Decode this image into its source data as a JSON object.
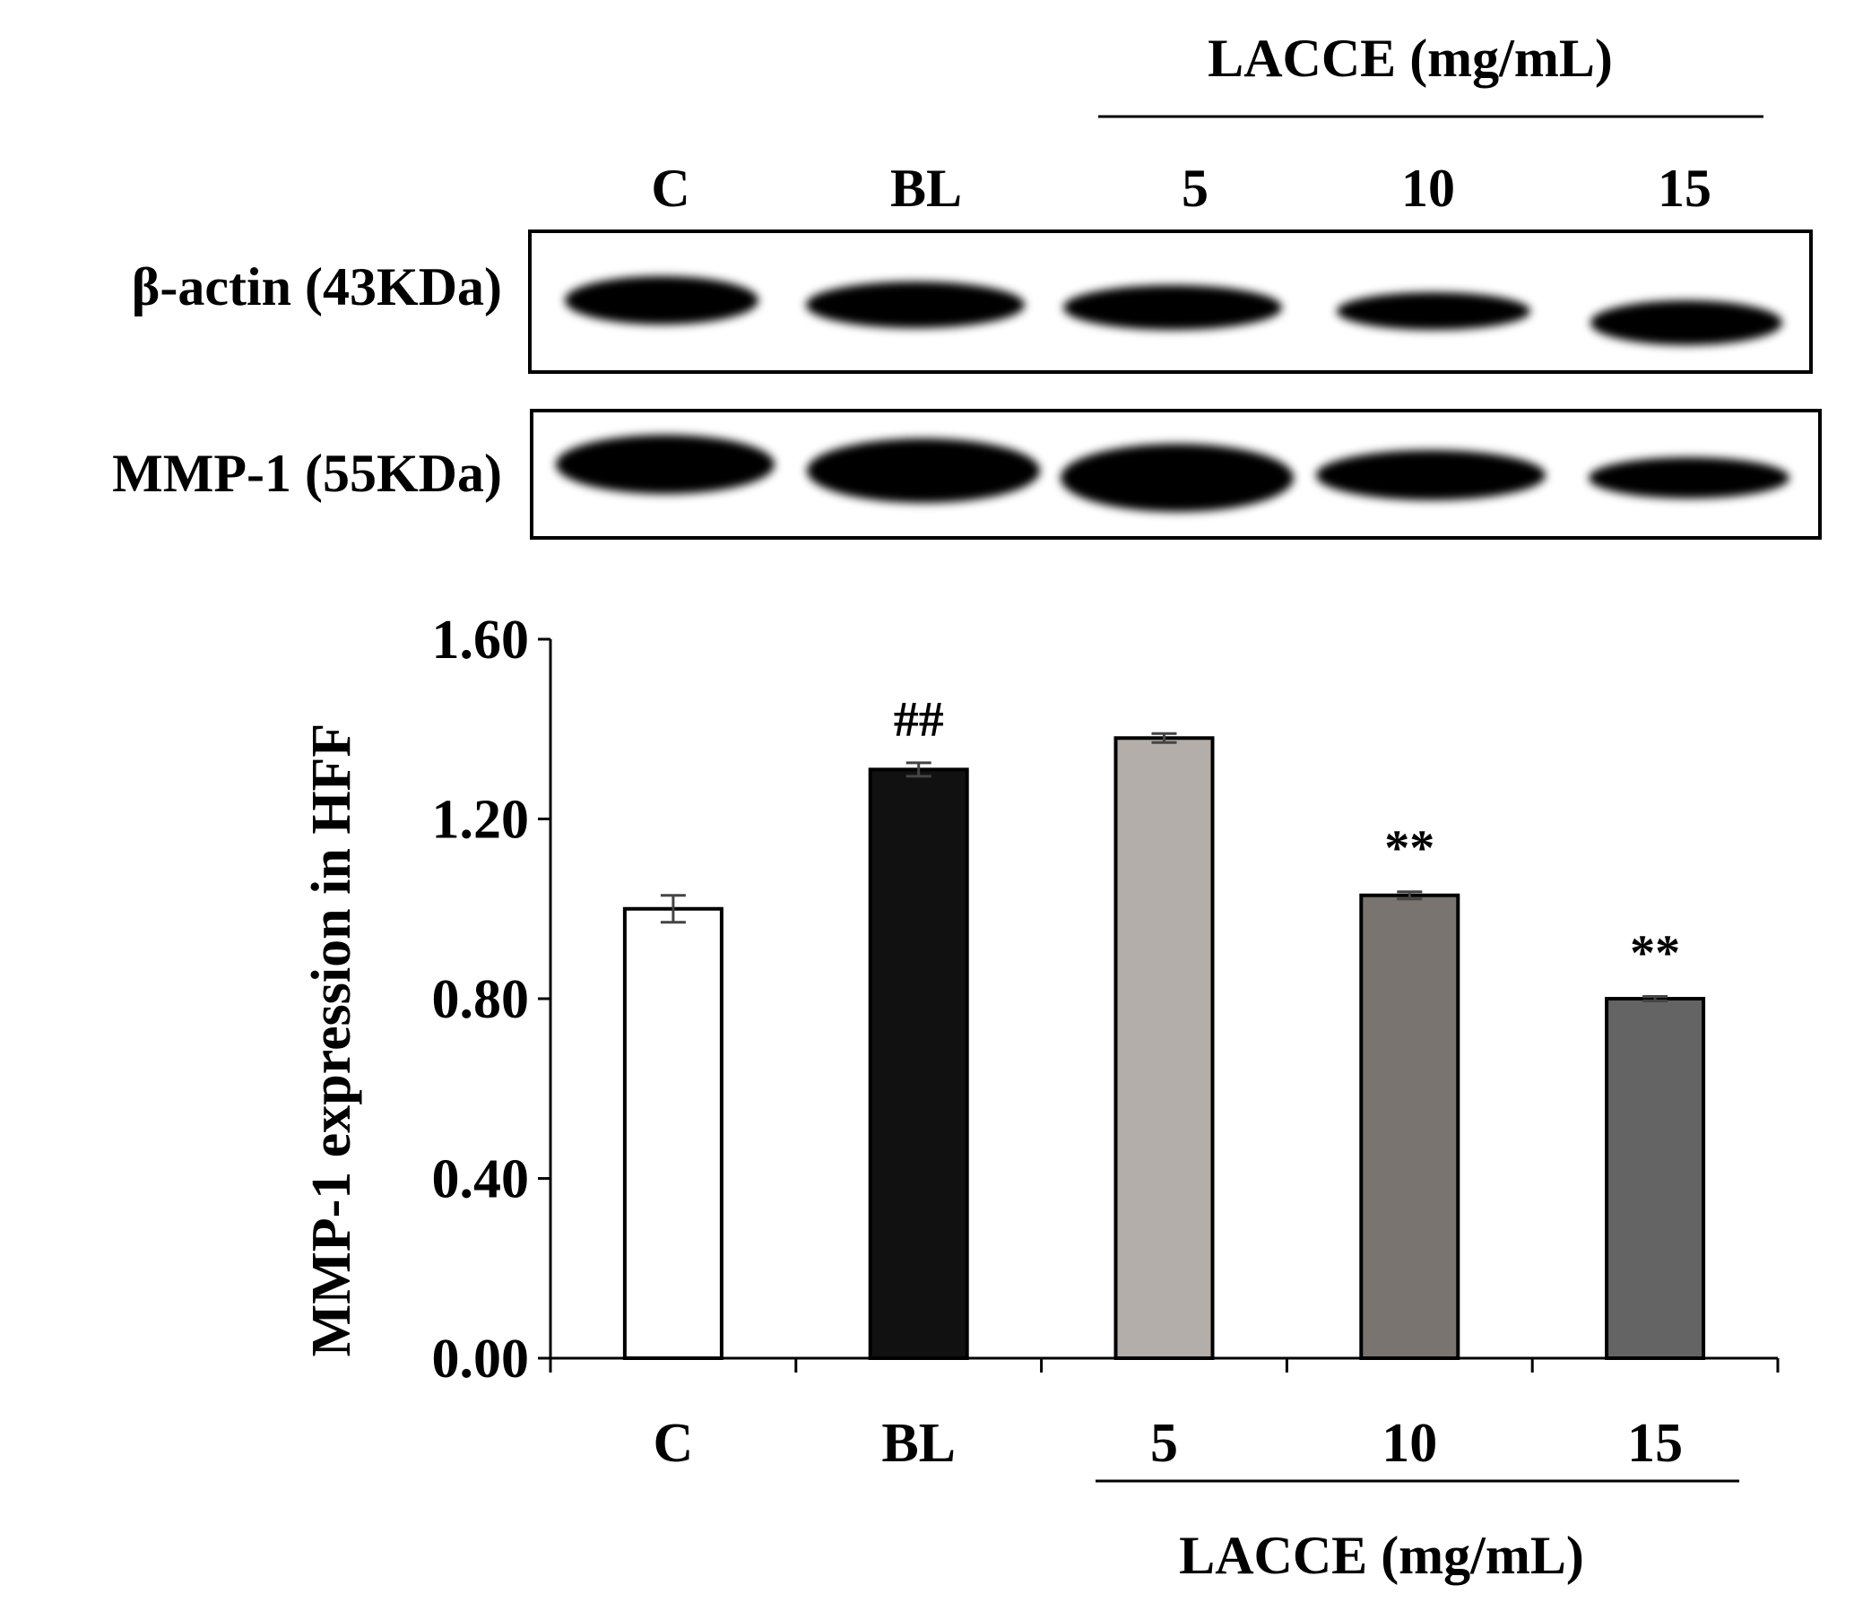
{
  "blot": {
    "group_label": "LACCE (mg/mL)",
    "lanes": [
      "C",
      "BL",
      "5",
      "10",
      "15"
    ],
    "rows": [
      {
        "label": "β-actin (43KDa)"
      },
      {
        "label": "MMP-1 (55KDa)"
      }
    ]
  },
  "chart_data": {
    "type": "bar",
    "categories": [
      "C",
      "BL",
      "5",
      "10",
      "15"
    ],
    "values": [
      1.0,
      1.31,
      1.38,
      1.03,
      0.8
    ],
    "errors": [
      0.03,
      0.015,
      0.01,
      0.008,
      0.005
    ],
    "significance": [
      "",
      "##",
      "",
      "**",
      "**"
    ],
    "bar_colors": [
      "#ffffff",
      "#111111",
      "#b3aea9",
      "#7a7470",
      "#646464"
    ],
    "ylabel": "MMP-1 expression in HFF",
    "xlabel": "",
    "group_label": "LACCE (mg/mL)",
    "yticks": [
      "0.00",
      "0.40",
      "0.80",
      "1.20",
      "1.60"
    ],
    "ylim": [
      0,
      1.6
    ],
    "grid": false
  }
}
